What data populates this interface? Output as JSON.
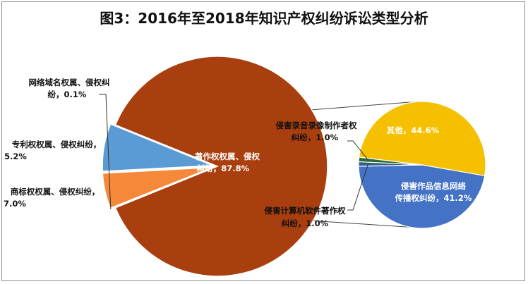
{
  "chart_data": {
    "type": "pie",
    "title": "图3：2016年至2018年知识产权纠纷诉讼类型分析",
    "main_pie": {
      "slices": [
        {
          "label_line1": "著作权权属、侵权",
          "label_line2": "纠纷，87.8%",
          "value": 87.8,
          "color": "#a93f0f"
        },
        {
          "label_line1": "网络域名权属、侵权纠",
          "label_line2": "纷，0.1%",
          "value": 0.1,
          "color": "#8a8a8a"
        },
        {
          "label_line1": "专利权权属、侵权纠纷，",
          "label_line2": "5.2%",
          "value": 5.2,
          "color": "#f6883a"
        },
        {
          "label_line1": "商标权权属、侵权纠纷，",
          "label_line2": "7.0%",
          "value": 7.0,
          "color": "#5b9bd5"
        }
      ]
    },
    "breakdown_pie": {
      "of": "著作权权属、侵权纠纷",
      "slices": [
        {
          "label_line1": "其他，44.6%",
          "label_line2": "",
          "value": 44.6,
          "color": "#f5c000"
        },
        {
          "label_line1": "侵害作品信息网络",
          "label_line2": "传播权纠纷，41.2%",
          "value": 41.2,
          "color": "#4472c4"
        },
        {
          "label_line1": "侵害计算机软件著作权",
          "label_line2": "纠纷，1.0%",
          "value": 1.0,
          "color": "#2f5f8a"
        },
        {
          "label_line1": "侵害录音录像制作者权",
          "label_line2": "纠纷，1.0%",
          "value": 1.0,
          "color": "#2e6b2e"
        }
      ]
    }
  }
}
